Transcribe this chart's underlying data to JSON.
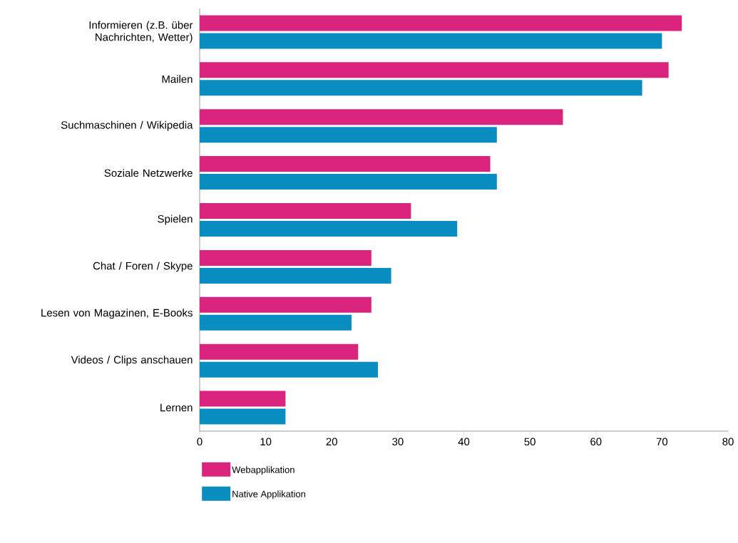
{
  "chart_data": {
    "type": "bar",
    "orientation": "horizontal",
    "categories": [
      "Informieren (z.B. über Nachrichten, Wetter)",
      "Mailen",
      "Suchmaschinen / Wikipedia",
      "Soziale Netzwerke",
      "Spielen",
      "Chat / Foren / Skype",
      "Lesen von Magazinen, E-Books",
      "Videos / Clips anschauen",
      "Lernen"
    ],
    "series": [
      {
        "name": "Webapplikation",
        "color": "#d9237c",
        "values": [
          73,
          71,
          55,
          44,
          32,
          26,
          26,
          24,
          13
        ]
      },
      {
        "name": "Native Applikation",
        "color": "#0a8ec2",
        "values": [
          70,
          67,
          45,
          45,
          39,
          29,
          23,
          27,
          13
        ]
      }
    ],
    "xlim": [
      0,
      80
    ],
    "xticks": [
      0,
      10,
      20,
      30,
      40,
      50,
      60,
      70,
      80
    ],
    "grid": false,
    "legend": "bottom left"
  }
}
